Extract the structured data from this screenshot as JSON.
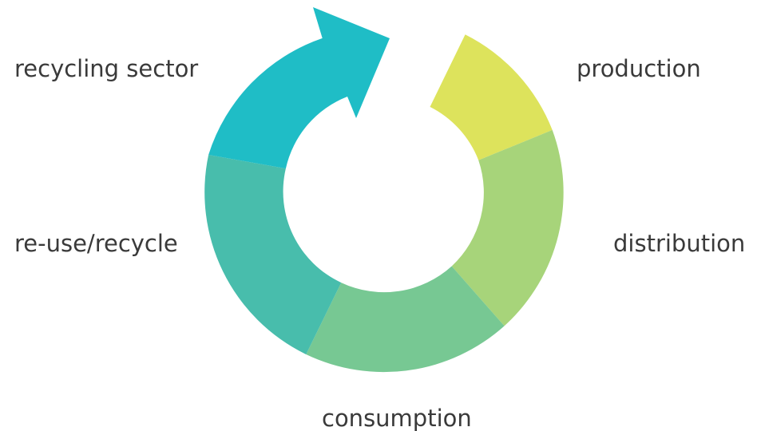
{
  "stages": [
    {
      "id": "production",
      "label": "production",
      "color": "#dde35c"
    },
    {
      "id": "distribution",
      "label": "distribution",
      "color": "#a7d47a"
    },
    {
      "id": "consumption",
      "label": "consumption",
      "color": "#77c893"
    },
    {
      "id": "reuse",
      "label": "re-use/recycle",
      "color": "#48bdac"
    },
    {
      "id": "recycling-sector",
      "label": "recycling sector",
      "color": "#1fbdc6"
    }
  ]
}
